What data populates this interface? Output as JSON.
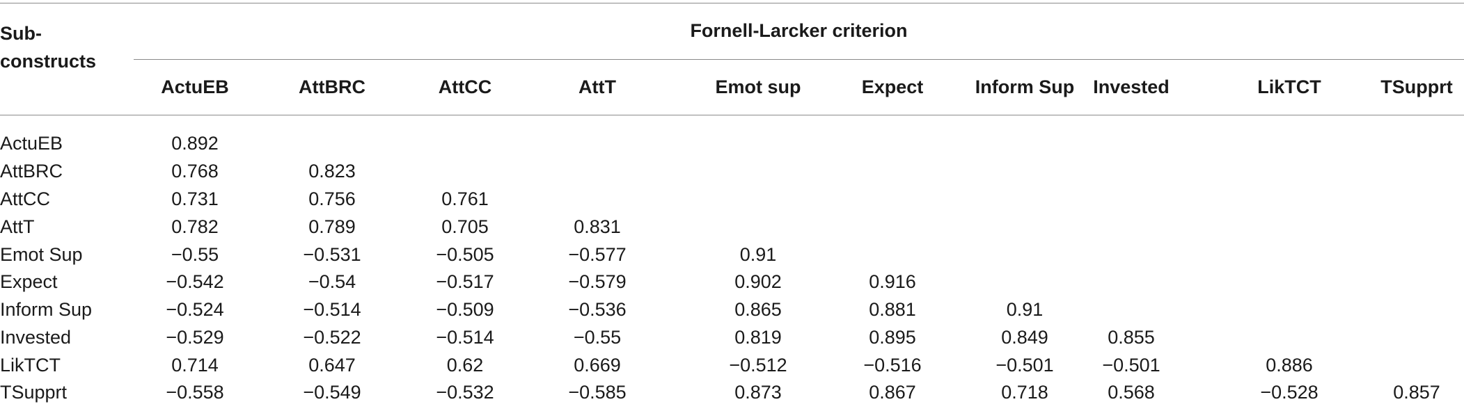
{
  "table": {
    "row_header_title": "Sub-constructs",
    "group_title": "Fornell-Larcker criterion",
    "columns": [
      "ActuEB",
      "AttBRC",
      "AttCC",
      "AttT",
      "Emot sup",
      "Expect",
      "Inform Sup",
      "Invested",
      "LikTCT",
      "TSupprt"
    ],
    "rows": [
      {
        "label": "ActuEB",
        "values": [
          "0.892",
          "",
          "",
          "",
          "",
          "",
          "",
          "",
          "",
          ""
        ]
      },
      {
        "label": "AttBRC",
        "values": [
          "0.768",
          "0.823",
          "",
          "",
          "",
          "",
          "",
          "",
          "",
          ""
        ]
      },
      {
        "label": "AttCC",
        "values": [
          "0.731",
          "0.756",
          "0.761",
          "",
          "",
          "",
          "",
          "",
          "",
          ""
        ]
      },
      {
        "label": "AttT",
        "values": [
          "0.782",
          "0.789",
          "0.705",
          "0.831",
          "",
          "",
          "",
          "",
          "",
          ""
        ]
      },
      {
        "label": "Emot Sup",
        "values": [
          "−0.55",
          "−0.531",
          "−0.505",
          "−0.577",
          "0.91",
          "",
          "",
          "",
          "",
          ""
        ]
      },
      {
        "label": "Expect",
        "values": [
          "−0.542",
          "−0.54",
          "−0.517",
          "−0.579",
          "0.902",
          "0.916",
          "",
          "",
          "",
          ""
        ]
      },
      {
        "label": "Inform Sup",
        "values": [
          "−0.524",
          "−0.514",
          "−0.509",
          "−0.536",
          "0.865",
          "0.881",
          "0.91",
          "",
          "",
          ""
        ]
      },
      {
        "label": "Invested",
        "values": [
          "−0.529",
          "−0.522",
          "−0.514",
          "−0.55",
          "0.819",
          "0.895",
          "0.849",
          "0.855",
          "",
          ""
        ]
      },
      {
        "label": "LikTCT",
        "values": [
          "0.714",
          "0.647",
          "0.62",
          "0.669",
          "−0.512",
          "−0.516",
          "−0.501",
          "−0.501",
          "0.886",
          ""
        ]
      },
      {
        "label": "TSupprt",
        "values": [
          "−0.558",
          "−0.549",
          "−0.532",
          "−0.585",
          "0.873",
          "0.867",
          "0.718",
          "0.568",
          "−0.528",
          "0.857"
        ]
      }
    ]
  }
}
